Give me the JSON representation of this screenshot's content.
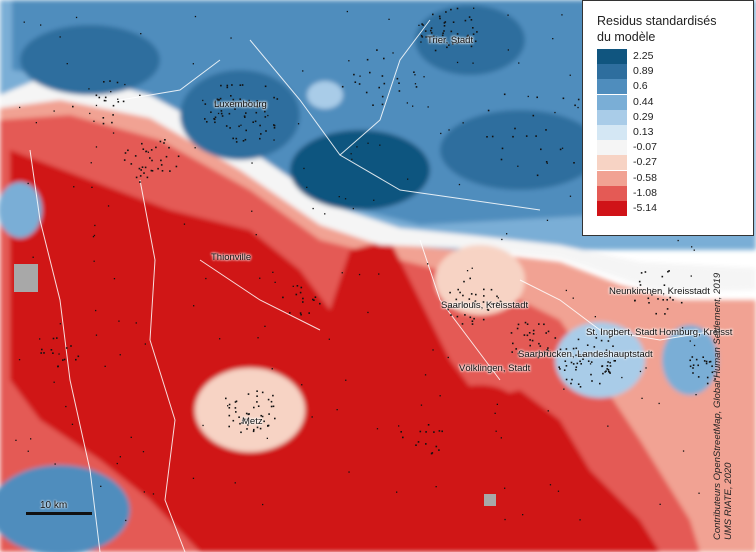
{
  "legend": {
    "title_line1": "Residus standardisés",
    "title_line2": "du modèle",
    "classes": [
      {
        "label": "2.25",
        "color": "#10557f"
      },
      {
        "label": "0.89",
        "color": "#2e6e9e"
      },
      {
        "label": "0.6",
        "color": "#4f8dbd"
      },
      {
        "label": "0.44",
        "color": "#7aaed6"
      },
      {
        "label": "0.29",
        "color": "#a9cce8"
      },
      {
        "label": "0.13",
        "color": "#d4e7f4"
      },
      {
        "label": "-0.07",
        "color": "#f5f5f5"
      },
      {
        "label": "-0.27",
        "color": "#f7d3c4"
      },
      {
        "label": "-0.58",
        "color": "#f1a293"
      },
      {
        "label": "-1.08",
        "color": "#e45a55"
      },
      {
        "label": "-5.14",
        "color": "#d01318"
      }
    ]
  },
  "cities": [
    {
      "name": "Trier, Stadt"
    },
    {
      "name": "Luxembourg"
    },
    {
      "name": "Thionville"
    },
    {
      "name": "Saarlouis, Kreisstadt"
    },
    {
      "name": "Neunkirchen, Kreisstadt"
    },
    {
      "name": "St. Ingbert, Stadt"
    },
    {
      "name": "Homburg, Kreisst"
    },
    {
      "name": "Saarbrücken, Landeshauptstadt"
    },
    {
      "name": "Völklingen, Stadt"
    },
    {
      "name": "Metz"
    }
  ],
  "scale": {
    "label": "10 km"
  },
  "credits": {
    "line1": "Contributeurs OpenStreetMap, Global Human Settlement, 2019",
    "line2": "UMS RIATE, 2020"
  },
  "colors": {
    "nodata": "#a8a8a8",
    "border": "#ffffff",
    "settlement": "#111111"
  }
}
